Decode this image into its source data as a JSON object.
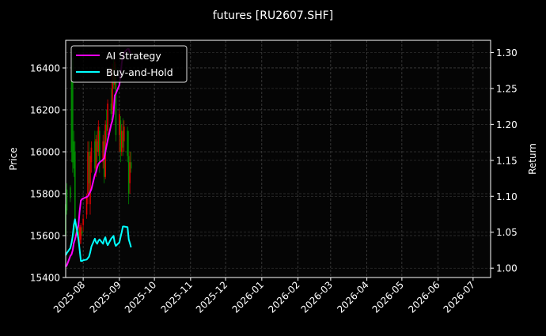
{
  "chart_data": {
    "type": "candlestick+line",
    "title": "futures [RU2607.SHF]",
    "ylabel_left": "Price",
    "ylabel_right": "Return",
    "ylim_left": [
      15400,
      16532
    ],
    "ylim_right": [
      0.987,
      1.317
    ],
    "xlim": [
      "2025-07-17",
      "2026-07-16"
    ],
    "grid": true,
    "legend_placement": "top-left",
    "yticks_left": [
      "15400",
      "15600",
      "15800",
      "16000",
      "16200",
      "16400"
    ],
    "yticks_right": [
      "1.00",
      "1.05",
      "1.10",
      "1.15",
      "1.20",
      "1.25",
      "1.30"
    ],
    "xticks": [
      "2025-08",
      "2025-09",
      "2025-10",
      "2025-11",
      "2025-12",
      "2026-01",
      "2026-02",
      "2026-03",
      "2026-04",
      "2026-05",
      "2026-06",
      "2026-07"
    ],
    "colors": {
      "up": "#e00000",
      "down": "#008800",
      "ai": "#ff00ff",
      "bh": "#00ffff",
      "background": "#000000",
      "plot_bg": "#050505"
    },
    "candles_columns": [
      "date",
      "open",
      "high",
      "low",
      "close"
    ],
    "candles": [
      [
        "2025-07-17",
        15750,
        15800,
        15550,
        15600
      ],
      [
        "2025-07-18",
        15820,
        15850,
        15700,
        15720
      ],
      [
        "2025-07-21",
        15830,
        15840,
        15760,
        15780
      ],
      [
        "2025-07-22",
        16400,
        16450,
        15950,
        16000
      ],
      [
        "2025-07-23",
        16450,
        16470,
        15900,
        15950
      ],
      [
        "2025-07-24",
        16050,
        16100,
        15880,
        15920
      ],
      [
        "2025-07-25",
        16000,
        16050,
        15600,
        15650
      ],
      [
        "2025-07-28",
        15620,
        15650,
        15570,
        15600
      ],
      [
        "2025-07-29",
        15560,
        15650,
        15540,
        15640
      ],
      [
        "2025-07-30",
        15580,
        15660,
        15560,
        15650
      ],
      [
        "2025-07-31",
        15620,
        15640,
        15600,
        15610
      ],
      [
        "2025-08-01",
        15650,
        15700,
        15620,
        15680
      ],
      [
        "2025-08-04",
        15700,
        15800,
        15680,
        15780
      ],
      [
        "2025-08-05",
        15800,
        16050,
        15750,
        16000
      ],
      [
        "2025-08-06",
        16000,
        16050,
        15800,
        15850
      ],
      [
        "2025-08-07",
        15750,
        16000,
        15700,
        15980
      ],
      [
        "2025-08-08",
        15950,
        16050,
        15900,
        16020
      ],
      [
        "2025-08-11",
        16050,
        16100,
        15900,
        15920
      ],
      [
        "2025-08-12",
        15900,
        16080,
        15880,
        16060
      ],
      [
        "2025-08-13",
        16050,
        16100,
        15950,
        16000
      ],
      [
        "2025-08-14",
        16000,
        16150,
        15980,
        16120
      ],
      [
        "2025-08-15",
        16100,
        16120,
        15900,
        15950
      ],
      [
        "2025-08-18",
        15950,
        16080,
        15920,
        16050
      ],
      [
        "2025-08-19",
        16050,
        16100,
        15850,
        15880
      ],
      [
        "2025-08-20",
        15880,
        16150,
        15870,
        16130
      ],
      [
        "2025-08-21",
        16130,
        16200,
        16050,
        16100
      ],
      [
        "2025-08-22",
        16100,
        16250,
        16080,
        16230
      ],
      [
        "2025-08-25",
        16230,
        16300,
        16150,
        16180
      ],
      [
        "2025-08-26",
        16200,
        16420,
        16180,
        16400
      ],
      [
        "2025-08-27",
        16400,
        16440,
        16300,
        16320
      ],
      [
        "2025-08-28",
        16320,
        16450,
        16300,
        16430
      ],
      [
        "2025-08-29",
        16400,
        16420,
        16050,
        16080
      ],
      [
        "2025-09-01",
        16080,
        16200,
        16000,
        16180
      ],
      [
        "2025-09-02",
        16150,
        16170,
        15950,
        16000
      ],
      [
        "2025-09-03",
        16000,
        16130,
        15980,
        16100
      ],
      [
        "2025-09-04",
        16100,
        16160,
        15980,
        16020
      ],
      [
        "2025-09-05",
        16050,
        16150,
        16000,
        16120
      ],
      [
        "2025-09-08",
        16100,
        16120,
        15950,
        15980
      ],
      [
        "2025-09-09",
        15980,
        16100,
        15750,
        15800
      ],
      [
        "2025-09-10",
        15850,
        16000,
        15800,
        15950
      ],
      [
        "2025-09-11",
        15950,
        16000,
        15900,
        15920
      ]
    ],
    "series": [
      {
        "name": "AI Strategy",
        "axis": "right",
        "values": [
          1.002,
          1.004,
          1.017,
          1.019,
          1.025,
          1.035,
          1.04,
          1.06,
          1.08,
          1.094,
          1.096,
          1.097,
          1.099,
          1.1,
          1.103,
          1.106,
          1.11,
          1.13,
          1.134,
          1.14,
          1.145,
          1.147,
          1.151,
          1.153,
          1.162,
          1.17,
          1.178,
          1.2,
          1.205,
          1.215,
          1.24,
          1.243,
          1.255,
          1.268,
          1.285,
          1.295,
          1.3,
          1.305,
          1.305,
          1.3,
          1.3
        ]
      },
      {
        "name": "Buy-and-Hold",
        "axis": "right",
        "values": [
          1.018,
          1.021,
          1.028,
          1.035,
          1.045,
          1.06,
          1.068,
          1.04,
          1.025,
          1.01,
          1.01,
          1.011,
          1.012,
          1.014,
          1.016,
          1.022,
          1.03,
          1.041,
          1.036,
          1.034,
          1.038,
          1.04,
          1.034,
          1.04,
          1.043,
          1.036,
          1.032,
          1.041,
          1.043,
          1.045,
          1.035,
          1.031,
          1.036,
          1.043,
          1.05,
          1.058,
          1.058,
          1.057,
          1.04,
          1.035,
          1.029
        ]
      }
    ]
  }
}
